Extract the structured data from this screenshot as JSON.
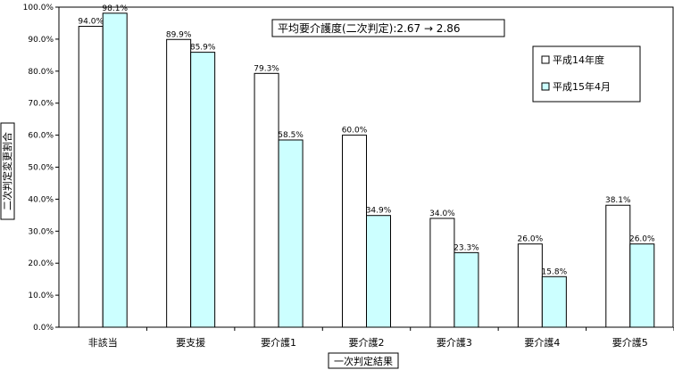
{
  "chart_data": {
    "type": "bar",
    "title": "",
    "xlabel": "一次判定結果",
    "ylabel": "二次判定変更割合",
    "categories": [
      "非該当",
      "要支援",
      "要介護1",
      "要介護2",
      "要介護3",
      "要介護4",
      "要介護5"
    ],
    "series": [
      {
        "name": "平成14年度",
        "color": "#ffffff",
        "values": [
          94.0,
          89.9,
          79.3,
          60.0,
          34.0,
          26.0,
          38.1
        ],
        "labels": [
          "94.0%",
          "89.9%",
          "79.3%",
          "60.0%",
          "34.0%",
          "26.0%",
          "38.1%"
        ]
      },
      {
        "name": "平成15年4月",
        "color": "#ccffff",
        "values": [
          98.1,
          85.9,
          58.5,
          34.9,
          23.3,
          15.8,
          26.0
        ],
        "labels": [
          "98.1%",
          "85.9%",
          "58.5%",
          "34.9%",
          "23.3%",
          "15.8%",
          "26.0%"
        ]
      }
    ],
    "ylim": [
      0,
      100
    ],
    "yticks": [
      0,
      10,
      20,
      30,
      40,
      50,
      60,
      70,
      80,
      90,
      100
    ],
    "ytick_labels": [
      "0.0%",
      "10.0%",
      "20.0%",
      "30.0%",
      "40.0%",
      "50.0%",
      "60.0%",
      "70.0%",
      "80.0%",
      "90.0%",
      "100.0%"
    ],
    "annotation": "平均要介護度(二次判定):2.67 → 2.86",
    "legend_position": "top-right",
    "grid": false
  }
}
